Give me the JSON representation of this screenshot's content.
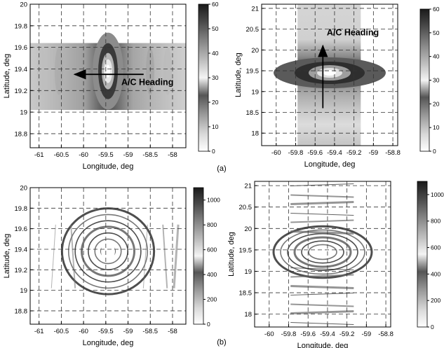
{
  "captions": {
    "a": "(a)",
    "b": "(b)"
  },
  "chart_data": [
    {
      "type": "heatmap",
      "panel": "a-left",
      "xlabel": "Longitude, deg",
      "ylabel": "Latitude, deg",
      "xlim": [
        -61.2,
        -57.7
      ],
      "ylim": [
        18.67,
        20.0
      ],
      "xticks": [
        -61,
        -60.5,
        -60,
        -59.5,
        -59,
        -58.5,
        -58
      ],
      "xtick_labels": [
        "-61",
        "-60.5",
        "-60",
        "-59.5",
        "-59",
        "-58.5",
        "-58"
      ],
      "yticks": [
        18.8,
        19.0,
        19.2,
        19.4,
        19.6,
        19.8,
        20.0
      ],
      "ytick_labels": [
        "18.8",
        "19",
        "19.2",
        "19.4",
        "19.6",
        "19.8",
        "20"
      ],
      "grid": true,
      "data_extent": {
        "x": [
          -61.2,
          -57.7
        ],
        "y": [
          19.02,
          19.64
        ]
      },
      "hotspot": {
        "x": -59.45,
        "y": 19.38
      },
      "annotation": {
        "text": "A/C Heading",
        "arrow_from": {
          "x": -58.65,
          "y": 19.35
        },
        "arrow_to": {
          "x": -60.2,
          "y": 19.35
        }
      },
      "colorbar": {
        "min": 0,
        "max": 60,
        "ticks": [
          0,
          10,
          20,
          30,
          40,
          50,
          60
        ],
        "labels": [
          "0",
          "10",
          "20",
          "30",
          "40",
          "50",
          "60"
        ]
      }
    },
    {
      "type": "heatmap",
      "panel": "a-right",
      "xlabel": "Longitude, deg",
      "ylabel": "Latitude, deg",
      "xlim": [
        -60.15,
        -58.75
      ],
      "ylim": [
        17.7,
        21.1
      ],
      "xticks": [
        -60,
        -59.8,
        -59.6,
        -59.4,
        -59.2,
        -59,
        -58.8
      ],
      "xtick_labels": [
        "-60",
        "-59.8",
        "-59.6",
        "-59.4",
        "-59.2",
        "-59",
        "-58.8"
      ],
      "yticks": [
        18,
        18.5,
        19,
        19.5,
        20,
        20.5,
        21
      ],
      "ytick_labels": [
        "18",
        "18.5",
        "19",
        "19.5",
        "20",
        "20.5",
        "21"
      ],
      "grid": true,
      "data_extent": {
        "x": [
          -59.78,
          -59.13
        ],
        "y": [
          17.7,
          21.1
        ]
      },
      "hotspot": {
        "x": -59.45,
        "y": 19.45
      },
      "annotation": {
        "text": "A/C Heading",
        "arrow_from": {
          "x": -59.52,
          "y": 18.6
        },
        "arrow_to": {
          "x": -59.52,
          "y": 20.1
        }
      },
      "colorbar": {
        "min": 0,
        "max": 60,
        "ticks": [
          0,
          10,
          20,
          30,
          40,
          50,
          60
        ],
        "labels": [
          "0",
          "10",
          "20",
          "30",
          "40",
          "50",
          "60"
        ]
      }
    },
    {
      "type": "heatmap",
      "panel": "b-left",
      "xlabel": "Longitude, deg",
      "ylabel": "Latitude, deg",
      "xlim": [
        -61.2,
        -57.7
      ],
      "ylim": [
        18.67,
        20.0
      ],
      "xticks": [
        -61,
        -60.5,
        -60,
        -59.5,
        -59,
        -58.5,
        -58
      ],
      "xtick_labels": [
        "-61",
        "-60.5",
        "-60",
        "-59.5",
        "-59",
        "-58.5",
        "-58"
      ],
      "yticks": [
        18.8,
        19.0,
        19.2,
        19.4,
        19.6,
        19.8,
        20.0
      ],
      "ytick_labels": [
        "18.8",
        "19",
        "19.2",
        "19.4",
        "19.6",
        "19.8",
        "20"
      ],
      "grid": true,
      "data_extent": {
        "x": [
          -60.8,
          -57.7
        ],
        "y": [
          19.02,
          19.64
        ]
      },
      "hotspot": {
        "x": -59.45,
        "y": 19.38
      },
      "colorbar": {
        "min": 0,
        "max": 1100,
        "ticks": [
          0,
          200,
          400,
          600,
          800,
          1000
        ],
        "labels": [
          "0",
          "200",
          "400",
          "600",
          "800",
          "1000"
        ]
      }
    },
    {
      "type": "heatmap",
      "panel": "b-right",
      "xlabel": "Longitude, deg",
      "ylabel": "Latitude, deg",
      "xlim": [
        -60.15,
        -58.75
      ],
      "ylim": [
        17.7,
        21.1
      ],
      "xticks": [
        -60,
        -59.8,
        -59.6,
        -59.4,
        -59.2,
        -59,
        -58.8
      ],
      "xtick_labels": [
        "-60",
        "-59.8",
        "-59.6",
        "-59.4",
        "-59.2",
        "-59",
        "-58.8"
      ],
      "yticks": [
        18,
        18.5,
        19,
        19.5,
        20,
        20.5,
        21
      ],
      "ytick_labels": [
        "18",
        "18.5",
        "19",
        "19.5",
        "20",
        "20.5",
        "21"
      ],
      "grid": true,
      "data_extent": {
        "x": [
          -59.78,
          -59.13
        ],
        "y": [
          17.7,
          21.1
        ]
      },
      "hotspot": {
        "x": -59.45,
        "y": 19.45
      },
      "colorbar": {
        "min": 0,
        "max": 1100,
        "ticks": [
          0,
          200,
          400,
          600,
          800,
          1000
        ],
        "labels": [
          "0",
          "200",
          "400",
          "600",
          "800",
          "1000"
        ]
      }
    }
  ]
}
